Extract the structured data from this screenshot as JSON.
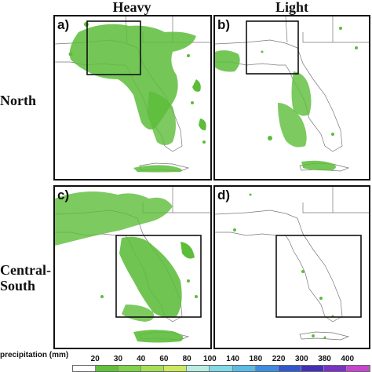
{
  "columns": [
    "Heavy",
    "Light"
  ],
  "rows": [
    "North",
    "Central-\nSouth"
  ],
  "panels": [
    {
      "label": "a)",
      "category": "heavy-north",
      "coverage": "extensive"
    },
    {
      "label": "b)",
      "category": "light-north",
      "coverage": "moderate"
    },
    {
      "label": "c)",
      "category": "heavy-central-south",
      "coverage": "extensive"
    },
    {
      "label": "d)",
      "category": "light-central-south",
      "coverage": "sparse"
    }
  ],
  "legend": {
    "title": "precipitation (mm)",
    "ticks": [
      "20",
      "30",
      "40",
      "60",
      "80",
      "100",
      "140",
      "180",
      "220",
      "300",
      "380",
      "400"
    ],
    "colors": [
      "#ffffff",
      "#5fc23a",
      "#7ed348",
      "#a4df55",
      "#cce95d",
      "#b9ece3",
      "#7fd9e6",
      "#58bce6",
      "#3a8de0",
      "#2f58d0",
      "#4330b6",
      "#7a32c2",
      "#c844cf"
    ]
  },
  "colors": {
    "rain": "#5cbd3a",
    "coast": "#666666",
    "box": "#111111"
  }
}
